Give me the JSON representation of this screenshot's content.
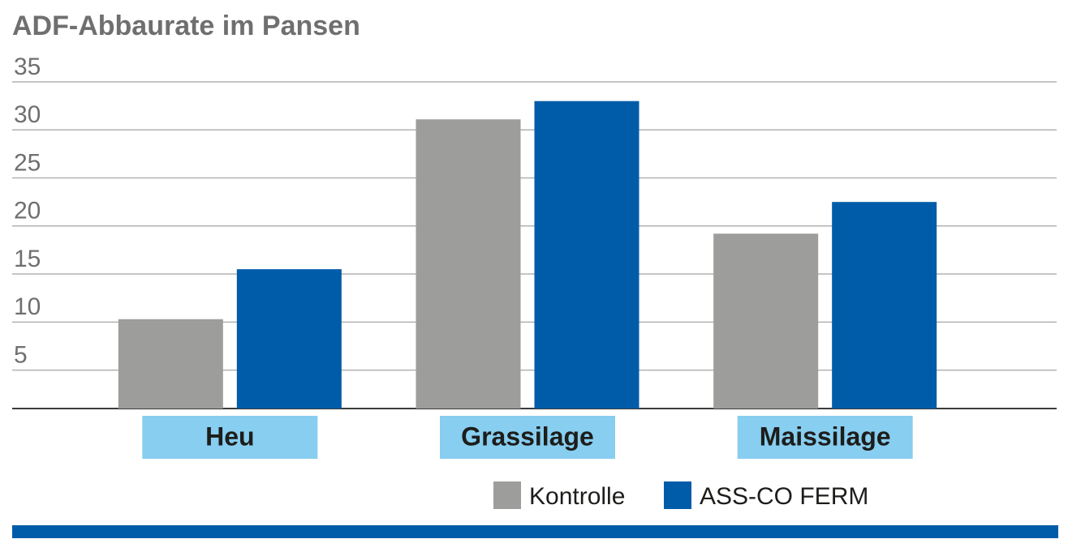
{
  "chart_data": {
    "type": "bar",
    "title": "ADF-Abbaurate im Pansen",
    "categories": [
      "Heu",
      "Grassilage",
      "Maissilage"
    ],
    "series": [
      {
        "name": "Kontrolle",
        "color": "#9d9d9c",
        "values": [
          10.3,
          31.1,
          19.2
        ]
      },
      {
        "name": "ASS-CO FERM",
        "color": "#005ca9",
        "values": [
          15.5,
          33.0,
          22.5
        ]
      }
    ],
    "ylim": [
      1,
      35
    ],
    "yticks": [
      5,
      10,
      15,
      20,
      25,
      30,
      35
    ],
    "grid": true
  }
}
